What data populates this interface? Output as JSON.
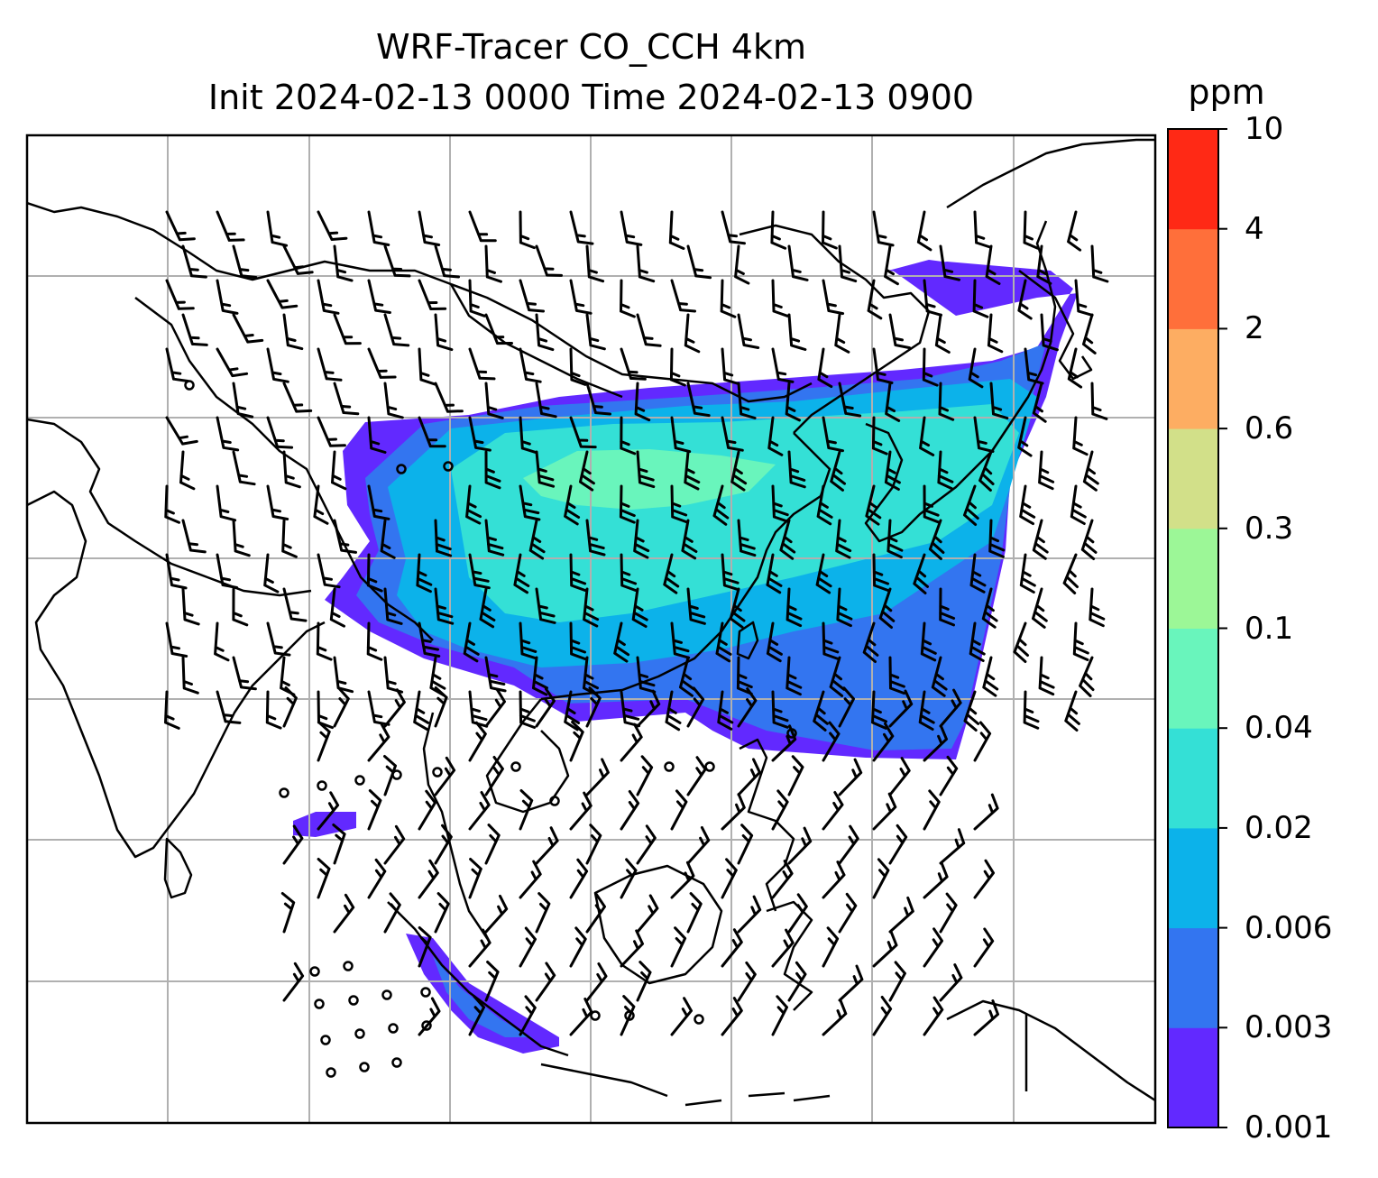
{
  "title": {
    "line1": "WRF-Tracer CO_CCH 4km",
    "line2": "Init 2024-02-13 0000 Time 2024-02-13 0900"
  },
  "colorbar": {
    "unit": "ppm",
    "ticks": [
      "0.001",
      "0.003",
      "0.006",
      "0.02",
      "0.04",
      "0.1",
      "0.3",
      "0.6",
      "2",
      "4",
      "10"
    ],
    "colors": [
      "#6229ff",
      "#3375f0",
      "#0cb2ea",
      "#34e0d6",
      "#69f5bc",
      "#9cf797",
      "#d2e089",
      "#fdad62",
      "#ff6f3a",
      "#ff2915"
    ]
  },
  "map": {
    "frame_color": "#000000",
    "gridline_color": "#b0b0b0",
    "coastline_color": "#000000",
    "wind_barb_color": "#000000"
  }
}
